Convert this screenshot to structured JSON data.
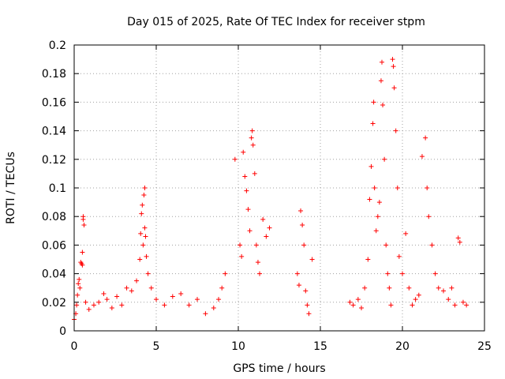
{
  "chart_data": {
    "type": "scatter",
    "title": "Day 015 of 2025, Rate Of TEC Index for receiver stpm",
    "xlabel": "GPS time / hours",
    "ylabel": "ROTI / TECUs",
    "xlim": [
      0,
      25
    ],
    "ylim": [
      0,
      0.2
    ],
    "xticks": [
      0,
      5,
      10,
      15,
      20,
      25
    ],
    "yticks": [
      0,
      0.02,
      0.04,
      0.06,
      0.08,
      0.1,
      0.12,
      0.14,
      0.16,
      0.18,
      0.2
    ],
    "xtick_labels": [
      "0",
      "5",
      "10",
      "15",
      "20",
      "25"
    ],
    "ytick_labels": [
      "0",
      "0.02",
      "0.04",
      "0.06",
      "0.08",
      "0.1",
      "0.12",
      "0.14",
      "0.16",
      "0.18",
      "0.2"
    ],
    "grid": true,
    "marker": "plus",
    "color": "#ff0000",
    "series": [
      {
        "name": "ROTI",
        "points": [
          [
            0.0,
            0.008
          ],
          [
            0.1,
            0.012
          ],
          [
            0.15,
            0.018
          ],
          [
            0.2,
            0.025
          ],
          [
            0.25,
            0.033
          ],
          [
            0.3,
            0.036
          ],
          [
            0.35,
            0.03
          ],
          [
            0.4,
            0.048
          ],
          [
            0.45,
            0.047
          ],
          [
            0.5,
            0.055
          ],
          [
            0.5,
            0.046
          ],
          [
            0.55,
            0.078
          ],
          [
            0.55,
            0.08
          ],
          [
            0.6,
            0.074
          ],
          [
            0.7,
            0.02
          ],
          [
            0.9,
            0.015
          ],
          [
            1.2,
            0.018
          ],
          [
            1.5,
            0.02
          ],
          [
            1.8,
            0.026
          ],
          [
            2.0,
            0.022
          ],
          [
            2.3,
            0.016
          ],
          [
            2.6,
            0.024
          ],
          [
            2.9,
            0.018
          ],
          [
            3.2,
            0.03
          ],
          [
            3.5,
            0.028
          ],
          [
            3.8,
            0.035
          ],
          [
            4.0,
            0.05
          ],
          [
            4.05,
            0.068
          ],
          [
            4.1,
            0.082
          ],
          [
            4.15,
            0.088
          ],
          [
            4.2,
            0.06
          ],
          [
            4.25,
            0.095
          ],
          [
            4.3,
            0.1
          ],
          [
            4.3,
            0.072
          ],
          [
            4.35,
            0.066
          ],
          [
            4.4,
            0.052
          ],
          [
            4.5,
            0.04
          ],
          [
            4.7,
            0.03
          ],
          [
            5.0,
            0.022
          ],
          [
            5.5,
            0.018
          ],
          [
            6.0,
            0.024
          ],
          [
            6.5,
            0.026
          ],
          [
            7.0,
            0.018
          ],
          [
            7.5,
            0.022
          ],
          [
            8.0,
            0.012
          ],
          [
            8.5,
            0.016
          ],
          [
            8.8,
            0.022
          ],
          [
            9.0,
            0.03
          ],
          [
            9.2,
            0.04
          ],
          [
            9.8,
            0.12
          ],
          [
            10.1,
            0.06
          ],
          [
            10.2,
            0.052
          ],
          [
            10.3,
            0.125
          ],
          [
            10.4,
            0.108
          ],
          [
            10.5,
            0.098
          ],
          [
            10.6,
            0.085
          ],
          [
            10.7,
            0.07
          ],
          [
            10.8,
            0.135
          ],
          [
            10.85,
            0.14
          ],
          [
            10.9,
            0.13
          ],
          [
            11.0,
            0.11
          ],
          [
            11.1,
            0.06
          ],
          [
            11.2,
            0.048
          ],
          [
            11.3,
            0.04
          ],
          [
            11.5,
            0.078
          ],
          [
            11.7,
            0.066
          ],
          [
            11.9,
            0.072
          ],
          [
            13.6,
            0.04
          ],
          [
            13.7,
            0.032
          ],
          [
            13.8,
            0.084
          ],
          [
            13.9,
            0.074
          ],
          [
            14.0,
            0.06
          ],
          [
            14.1,
            0.028
          ],
          [
            14.2,
            0.018
          ],
          [
            14.3,
            0.012
          ],
          [
            14.5,
            0.05
          ],
          [
            16.8,
            0.02
          ],
          [
            17.0,
            0.018
          ],
          [
            17.3,
            0.022
          ],
          [
            17.5,
            0.016
          ],
          [
            17.7,
            0.03
          ],
          [
            17.9,
            0.05
          ],
          [
            18.0,
            0.092
          ],
          [
            18.1,
            0.115
          ],
          [
            18.2,
            0.145
          ],
          [
            18.25,
            0.16
          ],
          [
            18.3,
            0.1
          ],
          [
            18.4,
            0.07
          ],
          [
            18.5,
            0.08
          ],
          [
            18.6,
            0.09
          ],
          [
            18.7,
            0.175
          ],
          [
            18.75,
            0.188
          ],
          [
            18.8,
            0.158
          ],
          [
            18.9,
            0.12
          ],
          [
            19.0,
            0.06
          ],
          [
            19.1,
            0.04
          ],
          [
            19.2,
            0.03
          ],
          [
            19.3,
            0.018
          ],
          [
            19.4,
            0.19
          ],
          [
            19.45,
            0.185
          ],
          [
            19.5,
            0.17
          ],
          [
            19.6,
            0.14
          ],
          [
            19.7,
            0.1
          ],
          [
            19.8,
            0.052
          ],
          [
            20.0,
            0.04
          ],
          [
            20.2,
            0.068
          ],
          [
            20.4,
            0.03
          ],
          [
            20.6,
            0.018
          ],
          [
            20.8,
            0.022
          ],
          [
            21.0,
            0.025
          ],
          [
            21.2,
            0.122
          ],
          [
            21.4,
            0.135
          ],
          [
            21.5,
            0.1
          ],
          [
            21.6,
            0.08
          ],
          [
            21.8,
            0.06
          ],
          [
            22.0,
            0.04
          ],
          [
            22.2,
            0.03
          ],
          [
            22.5,
            0.028
          ],
          [
            22.8,
            0.022
          ],
          [
            23.0,
            0.03
          ],
          [
            23.2,
            0.018
          ],
          [
            23.4,
            0.065
          ],
          [
            23.5,
            0.062
          ],
          [
            23.7,
            0.02
          ],
          [
            23.9,
            0.018
          ]
        ]
      }
    ]
  }
}
